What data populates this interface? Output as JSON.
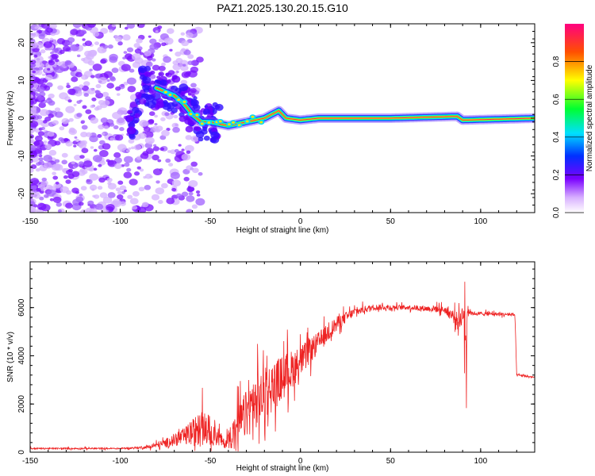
{
  "title": "PAZ1.2025.130.20.15.G10",
  "chart_data": [
    {
      "type": "heatmap",
      "xlabel": "Height of straight line (km)",
      "ylabel": "Frequency (Hz)",
      "xlim": [
        -150,
        130
      ],
      "ylim": [
        -25,
        25
      ],
      "xticks": [
        -150,
        -100,
        -50,
        0,
        50,
        100
      ],
      "yticks": [
        -20,
        -10,
        0,
        10,
        20
      ],
      "colorbar": {
        "label": "Normalized spectral amplitude",
        "range": [
          0,
          1
        ],
        "ticks": [
          0.0,
          0.2,
          0.4,
          0.6,
          0.8
        ],
        "tick_labels": [
          "0.0",
          "0.2",
          "0.4",
          "0.6",
          "0.8"
        ]
      },
      "ridge_frequency": [
        {
          "x": -90,
          "f": 9
        },
        {
          "x": -80,
          "f": 8
        },
        {
          "x": -70,
          "f": 6
        },
        {
          "x": -65,
          "f": 4
        },
        {
          "x": -60,
          "f": 1
        },
        {
          "x": -55,
          "f": -1
        },
        {
          "x": -50,
          "f": -1
        },
        {
          "x": -45,
          "f": -1.5
        },
        {
          "x": -40,
          "f": -2
        },
        {
          "x": -35,
          "f": -1.5
        },
        {
          "x": -30,
          "f": -1
        },
        {
          "x": -20,
          "f": 0
        },
        {
          "x": -12,
          "f": 2
        },
        {
          "x": -8,
          "f": 0
        },
        {
          "x": 0,
          "f": -0.5
        },
        {
          "x": 10,
          "f": 0
        },
        {
          "x": 50,
          "f": 0
        },
        {
          "x": 87,
          "f": 0.5
        },
        {
          "x": 90,
          "f": -0.5
        },
        {
          "x": 130,
          "f": 0
        }
      ]
    },
    {
      "type": "line",
      "xlabel": "Height of straight line (km)",
      "ylabel": "SNR (10 * v/v)",
      "xlim": [
        -150,
        130
      ],
      "ylim": [
        0,
        7900
      ],
      "xticks": [
        -150,
        -100,
        -50,
        0,
        50,
        100
      ],
      "yticks": [
        0,
        2000,
        4000,
        6000
      ],
      "series": [
        {
          "name": "SNR",
          "color": "#ee2222",
          "envelope": [
            {
              "x": -150,
              "base": 150,
              "amp": 60
            },
            {
              "x": -100,
              "base": 150,
              "amp": 60
            },
            {
              "x": -85,
              "base": 200,
              "amp": 120
            },
            {
              "x": -75,
              "base": 350,
              "amp": 350
            },
            {
              "x": -65,
              "base": 600,
              "amp": 700
            },
            {
              "x": -55,
              "base": 900,
              "amp": 1500
            },
            {
              "x": -48,
              "base": 800,
              "amp": 1200
            },
            {
              "x": -42,
              "base": 300,
              "amp": 300
            },
            {
              "x": -38,
              "base": 700,
              "amp": 1200
            },
            {
              "x": -30,
              "base": 1500,
              "amp": 2000
            },
            {
              "x": -20,
              "base": 2300,
              "amp": 2200
            },
            {
              "x": -10,
              "base": 3000,
              "amp": 1900
            },
            {
              "x": 0,
              "base": 3700,
              "amp": 1300
            },
            {
              "x": 10,
              "base": 4500,
              "amp": 900
            },
            {
              "x": 20,
              "base": 5300,
              "amp": 600
            },
            {
              "x": 30,
              "base": 5800,
              "amp": 350
            },
            {
              "x": 40,
              "base": 6000,
              "amp": 250
            },
            {
              "x": 60,
              "base": 6000,
              "amp": 200
            },
            {
              "x": 80,
              "base": 5900,
              "amp": 300
            },
            {
              "x": 88,
              "base": 5400,
              "amp": 700
            },
            {
              "x": 92,
              "base": 6000,
              "amp": 900
            },
            {
              "x": 95,
              "base": 5750,
              "amp": 150
            },
            {
              "x": 119,
              "base": 5700,
              "amp": 150
            },
            {
              "x": 120,
              "base": 3200,
              "amp": 80
            },
            {
              "x": 130,
              "base": 3100,
              "amp": 80
            }
          ]
        }
      ]
    }
  ]
}
